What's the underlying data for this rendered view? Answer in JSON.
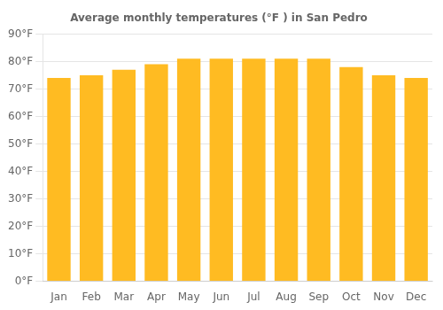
{
  "chart_data": {
    "type": "bar",
    "title": "Average monthly temperatures (°F ) in San Pedro",
    "categories": [
      "Jan",
      "Feb",
      "Mar",
      "Apr",
      "May",
      "Jun",
      "Jul",
      "Aug",
      "Sep",
      "Oct",
      "Nov",
      "Dec"
    ],
    "values": [
      74,
      75,
      77,
      79,
      81,
      81,
      81,
      81,
      81,
      78,
      75,
      74
    ],
    "color": "#FFBB22",
    "ylim": [
      0,
      90
    ],
    "yticks": [
      {
        "value": 0,
        "label": "0°F"
      },
      {
        "value": 10,
        "label": "10°F"
      },
      {
        "value": 20,
        "label": "20°F"
      },
      {
        "value": 30,
        "label": "30°F"
      },
      {
        "value": 40,
        "label": "40°F"
      },
      {
        "value": 50,
        "label": "50°F"
      },
      {
        "value": 60,
        "label": "60°F"
      },
      {
        "value": 70,
        "label": "70°F"
      },
      {
        "value": 80,
        "label": "80°F"
      },
      {
        "value": 90,
        "label": "90°F"
      }
    ],
    "grid": true
  }
}
